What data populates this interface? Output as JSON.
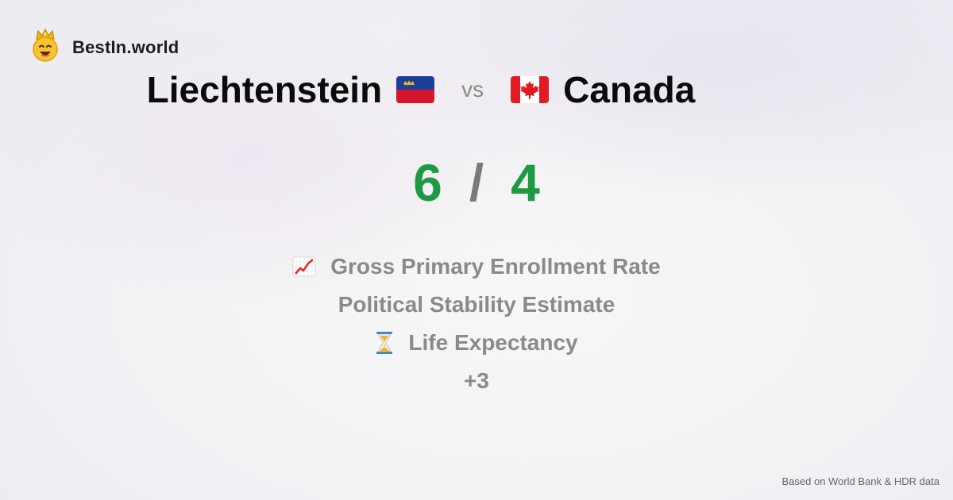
{
  "brand": {
    "name": "BestIn.world",
    "logo_icon": "crowned-smiley-icon"
  },
  "comparison": {
    "left_country": "Liechtenstein",
    "left_flag_icon": "liechtenstein-flag-icon",
    "vs_label": "vs",
    "right_country": "Canada",
    "right_flag_icon": "canada-flag-icon"
  },
  "score": {
    "left": "6",
    "separator": "/",
    "right": "4",
    "color": "#1f9a44"
  },
  "metrics": [
    {
      "icon": "chart-increasing-icon",
      "label": "Gross Primary Enrollment Rate"
    },
    {
      "icon": "",
      "label": "Political Stability Estimate"
    },
    {
      "icon": "hourglass-icon",
      "label": "Life Expectancy"
    }
  ],
  "more_label": "+3",
  "footer": {
    "source_text": "Based on World Bank & HDR data"
  }
}
